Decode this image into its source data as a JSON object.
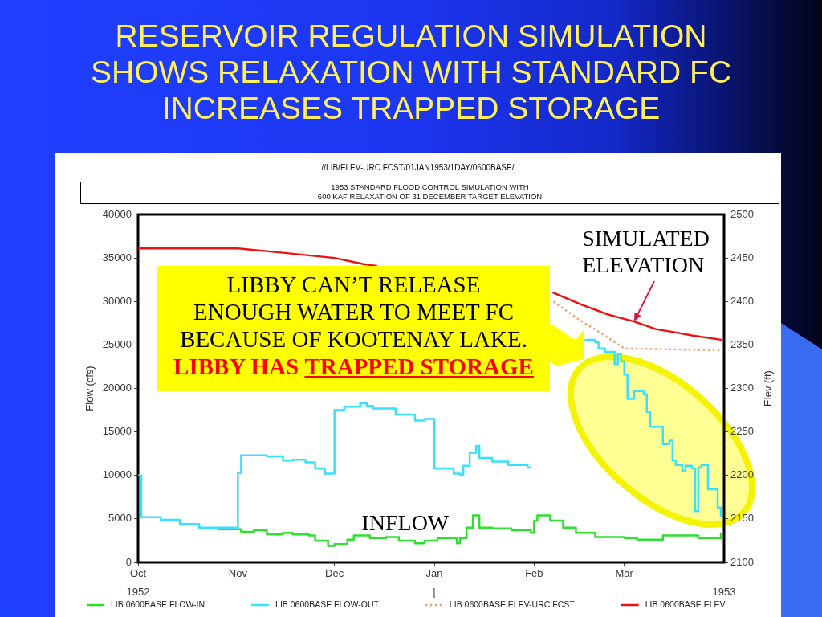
{
  "chart_data": {
    "type": "line",
    "title": "RESERVOIR REGULATION SIMULATION SHOWS RELAXATION WITH STANDARD FC INCREASES TRAPPED STORAGE",
    "subtitle": "//LIB/ELEV-URC FCST/01JAN1953/1DAY/0600BASE/",
    "ylabel": "Flow (cfs)",
    "y2label": "Elev (ft)",
    "annotations": [
      "1953 STANDARD FLOOD CONTROL SIMULATION WITH\n600 KAF RELAXATION OF 31 DECEMBER TARGET ELEVATION",
      "LIBBY CAN’T RELEASE\nENOUGH WATER TO MEET FC\nBECAUSE OF KOOTENAY LAKE.",
      "LIBBY HAS",
      "TRAPPED STORAGE",
      {
        "text": "SIMULATED ELEVATION",
        "x": "1953-03-04",
        "y": 27700
      },
      {
        "text": "INFLOW",
        "x": "1952-12-23",
        "y": 2500
      }
    ],
    "xlim": [
      "1952-10-01",
      "1953-04-01"
    ],
    "xticks": [
      {
        "value": "1952-10-01",
        "label": "Oct"
      },
      {
        "value": "1952-11-01",
        "label": "Nov"
      },
      {
        "value": "1952-12-01",
        "label": "Dec"
      },
      {
        "value": "1953-01-01",
        "label": "Jan"
      },
      {
        "value": "1953-02-01",
        "label": "Feb"
      },
      {
        "value": "1953-03-01",
        "label": "Mar"
      }
    ],
    "x2lim": [
      "1952-10-01",
      "1953-04-01"
    ],
    "x2ticks": [
      {
        "value": "1952-10-01",
        "label": "1952"
      },
      {
        "value": "1953-01-01",
        "label": "|"
      },
      {
        "value": "1953-04-01",
        "label": "1953"
      }
    ],
    "ylim": [
      0,
      40000
    ],
    "yticks": [
      0,
      5000,
      10000,
      15000,
      20000,
      25000,
      30000,
      35000,
      40000
    ],
    "y2lim": [
      2100,
      2500
    ],
    "y2ticks": [
      2100,
      2150,
      2200,
      2250,
      2300,
      2350,
      2400,
      2450,
      2500
    ],
    "grid": false,
    "legend": "bottom",
    "series": [
      {
        "name": "LIB 0600BASE FLOW-IN",
        "color": "#2ee02e",
        "type": "step",
        "x": [
          "1952-10-26",
          "1952-11-02",
          "1952-11-06",
          "1952-11-10",
          "1952-11-15",
          "1952-11-18",
          "1952-11-23",
          "1952-11-25",
          "1952-11-29",
          "1952-12-01",
          "1952-12-05",
          "1952-12-07",
          "1952-12-12",
          "1952-12-17",
          "1952-12-21",
          "1952-12-26",
          "1952-12-29",
          "1953-01-02",
          "1953-01-08",
          "1953-01-09",
          "1953-01-11",
          "1953-01-13",
          "1953-01-15",
          "1953-01-19",
          "1953-01-25",
          "1953-01-31",
          "1953-02-01",
          "1953-02-02",
          "1953-02-06",
          "1953-02-10",
          "1953-02-14",
          "1953-02-20",
          "1953-03-01",
          "1953-03-05",
          "1953-03-13",
          "1953-03-24",
          "1953-03-31"
        ],
        "values": [
          3800,
          3500,
          3700,
          3200,
          3400,
          3200,
          3100,
          2500,
          1900,
          2100,
          2600,
          3100,
          2800,
          2900,
          2500,
          2200,
          2500,
          2800,
          2200,
          2800,
          4000,
          5400,
          4000,
          3900,
          3700,
          3400,
          4800,
          5400,
          4800,
          4000,
          3400,
          2900,
          2800,
          2600,
          3100,
          2800,
          3300
        ]
      },
      {
        "name": "LIB 0600BASE FLOW-OUT",
        "color": "#38e0ff",
        "type": "step",
        "x": [
          "1952-10-01",
          "1952-10-02",
          "1952-10-08",
          "1952-10-14",
          "1952-10-20",
          "1952-11-01",
          "1952-11-02",
          "1952-11-10",
          "1952-11-15",
          "1952-11-18",
          "1952-11-22",
          "1952-11-25",
          "1952-11-28",
          "1952-12-01",
          "1952-12-04",
          "1952-12-09",
          "1952-12-11",
          "1952-12-13",
          "1952-12-20",
          "1952-12-26",
          "1952-12-29",
          "1953-01-01",
          "1953-01-07",
          "1953-01-09",
          "1953-01-10",
          "1953-01-12",
          "1953-01-14",
          "1953-01-15",
          "1953-01-19",
          "1953-01-24",
          "1953-01-30",
          "1953-01-31",
          "1953-02-08",
          "1953-02-17",
          "1953-02-20",
          "1953-02-21",
          "1953-02-23",
          "1953-02-26",
          "1953-02-27",
          "1953-02-28",
          "1953-03-01",
          "1953-03-02",
          "1953-03-04",
          "1953-03-07",
          "1953-03-08",
          "1953-03-09",
          "1953-03-13",
          "1953-03-15",
          "1953-03-16",
          "1953-03-17",
          "1953-03-19",
          "1953-03-20",
          "1953-03-22",
          "1953-03-23",
          "1953-03-24",
          "1953-03-25",
          "1953-03-27",
          "1953-03-30",
          "1953-03-31"
        ],
        "values": [
          10000,
          5200,
          4900,
          4400,
          4000,
          10300,
          12300,
          12200,
          11700,
          11800,
          11500,
          10800,
          10200,
          17500,
          17900,
          18300,
          18000,
          17700,
          17000,
          16300,
          16500,
          10800,
          10200,
          10100,
          11100,
          12600,
          13400,
          12000,
          11600,
          11200,
          10900,
          10900,
          null,
          25600,
          25300,
          24600,
          24200,
          22800,
          24000,
          23100,
          21600,
          18800,
          19700,
          19300,
          17300,
          15600,
          13600,
          14000,
          11700,
          11200,
          10500,
          11100,
          10800,
          5900,
          10900,
          11200,
          8400,
          6300,
          5300
        ]
      },
      {
        "name": "LIB 0600BASE ELEV-URC FCST",
        "color": "#f5a070",
        "axis": "y2",
        "line_style": "dotted",
        "x": [
          "1953-02-07",
          "1953-02-15",
          "1953-02-22",
          "1953-03-01",
          "1953-03-15",
          "1953-03-31"
        ],
        "values": [
          2400,
          2379,
          2363,
          2346,
          2345,
          2344
        ]
      },
      {
        "name": "LIB 0600BASE ELEV",
        "color": "#f01010",
        "axis": "y2",
        "x": [
          "1952-10-01",
          "1952-11-01",
          "1952-11-15",
          "1952-12-01",
          "1952-12-10",
          "1952-12-14",
          "1953-01-15",
          "1953-02-07",
          "1953-02-16",
          "1953-02-24",
          "1953-03-04",
          "1953-03-11",
          "1953-03-16",
          "1953-03-22",
          "1953-03-31"
        ],
        "values": [
          2461,
          2461,
          2456,
          2450,
          2443,
          2441,
          null,
          2410,
          2396,
          2385,
          2377,
          2368,
          2365,
          2361,
          2356
        ]
      }
    ]
  }
}
